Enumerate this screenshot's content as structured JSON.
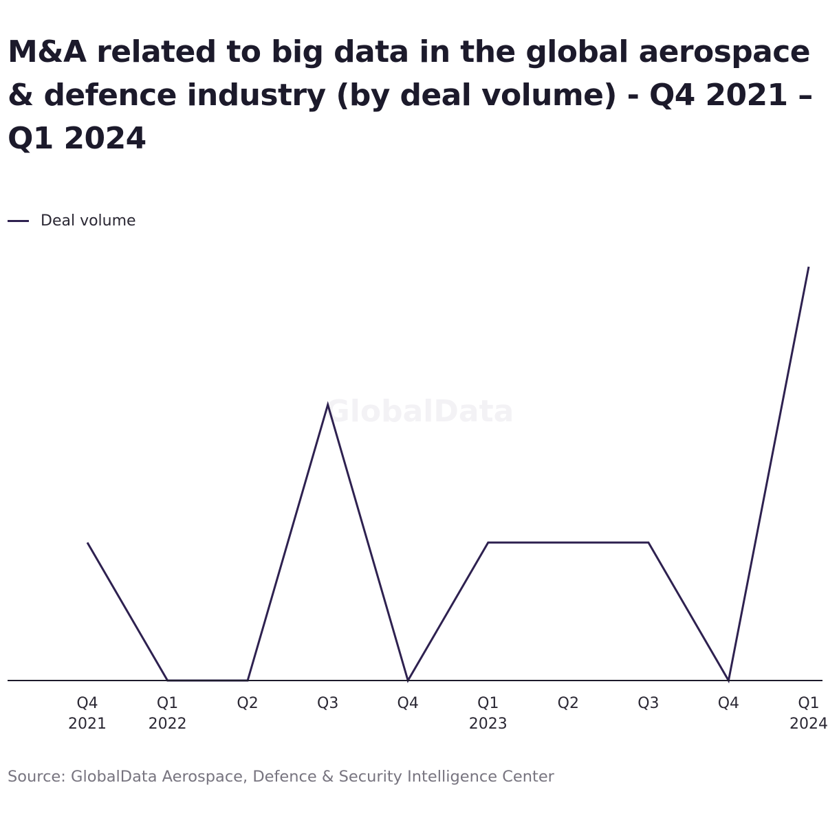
{
  "title": "M&A related to big data in the global aerospace & defence industry (by deal volume) - Q4 2021 – Q1 2024",
  "legend": {
    "label": "Deal volume"
  },
  "watermark": "GlobalData",
  "source": "Source: GlobalData Aerospace, Defence & Security Intelligence Center",
  "colors": {
    "line": "#2e2150",
    "axis": "#1c1a2b",
    "text": "#2a2733",
    "source_text": "#77747f"
  },
  "chart_data": {
    "type": "line",
    "title": "M&A related to big data in the global aerospace & defence industry (by deal volume) - Q4 2021 – Q1 2024",
    "categories": [
      [
        "Q4",
        "2021"
      ],
      [
        "Q1",
        "2022"
      ],
      [
        "Q2",
        ""
      ],
      [
        "Q3",
        ""
      ],
      [
        "Q4",
        ""
      ],
      [
        "Q1",
        "2023"
      ],
      [
        "Q2",
        ""
      ],
      [
        "Q3",
        ""
      ],
      [
        "Q4",
        ""
      ],
      [
        "Q1",
        "2024"
      ]
    ],
    "series": [
      {
        "name": "Deal volume",
        "values": [
          1,
          0,
          0,
          2,
          0,
          1,
          1,
          1,
          0,
          3
        ]
      }
    ],
    "ylim": [
      0,
      3
    ],
    "y_axis_visible": false,
    "grid": false,
    "legend_position": "top-left"
  }
}
